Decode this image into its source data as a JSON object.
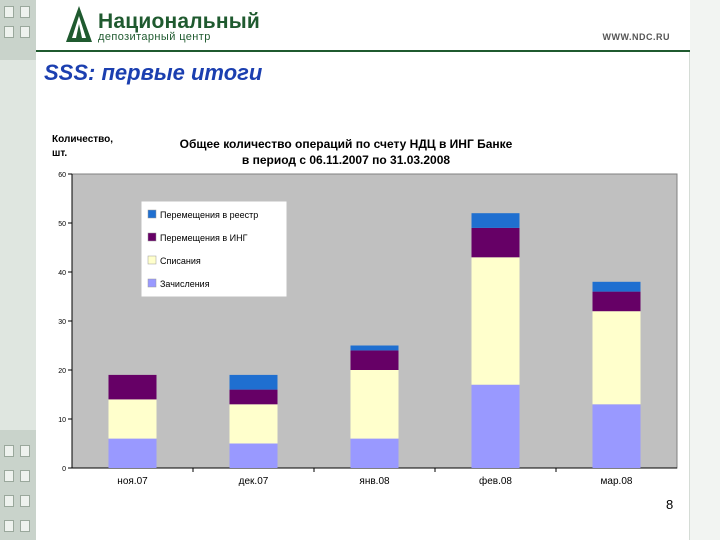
{
  "header": {
    "logo_line1": "Национальный",
    "logo_line2": "депозитарный центр",
    "site": "WWW.NDC.RU"
  },
  "slide": {
    "title": "SSS: первые итоги",
    "page_number": "8"
  },
  "colors": {
    "brand_green": "#1f5a2f",
    "title_blue": "#1b3fb0",
    "plot_bg": "#c0c0c0"
  },
  "chart_data": {
    "type": "bar",
    "stacked": true,
    "title_line1": "Общее количество операций по счету НДЦ в ИНГ Банке",
    "title_line2": "в период с 06.11.2007 по 31.03.2008",
    "ylabel_line1": "Количество,",
    "ylabel_line2": "шт.",
    "ylim": [
      0,
      60
    ],
    "yticks": [
      0,
      10,
      20,
      30,
      40,
      50,
      60
    ],
    "grid": false,
    "legend_position": "top-left",
    "categories": [
      "ноя.07",
      "дек.07",
      "янв.08",
      "фев.08",
      "мар.08"
    ],
    "series": [
      {
        "name": "Зачисления",
        "color": "#9999ff",
        "values": [
          6,
          5,
          6,
          17,
          13
        ]
      },
      {
        "name": "Списания",
        "color": "#ffffcc",
        "values": [
          8,
          8,
          14,
          26,
          19
        ]
      },
      {
        "name": "Перемещения в ИНГ",
        "color": "#660066",
        "values": [
          5,
          3,
          4,
          6,
          4
        ]
      },
      {
        "name": "Перемещения в реестр",
        "color": "#1f6fd0",
        "values": [
          0,
          3,
          1,
          3,
          2
        ]
      }
    ],
    "legend_order": [
      "Перемещения в реестр",
      "Перемещения в ИНГ",
      "Списания",
      "Зачисления"
    ]
  }
}
